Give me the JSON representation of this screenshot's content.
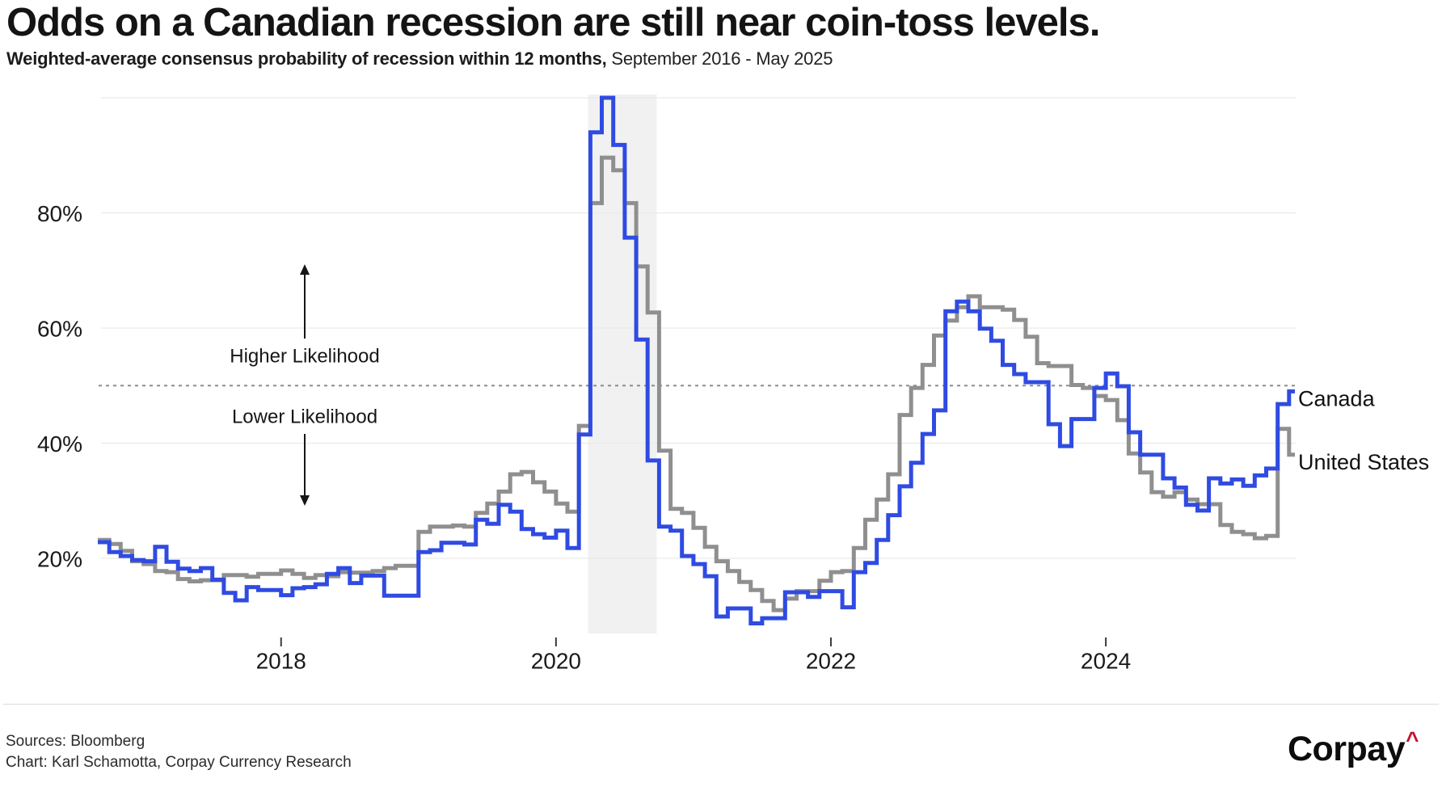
{
  "header": {
    "title": "Odds on a Canadian recession are still near coin-toss levels.",
    "subtitle_bold": "Weighted-average consensus probability of recession within 12 months,",
    "subtitle_light": " September 2016 - May 2025"
  },
  "annotations": {
    "higher_label": "Higher Likelihood",
    "lower_label": "Lower Likelihood"
  },
  "footer": {
    "sources": "Sources: Bloomberg",
    "credit": "Chart: Karl Schamotta, Corpay Currency Research",
    "logo_text": "Corpay",
    "logo_caret": "^"
  },
  "colors": {
    "canada_line": "#2f4be2",
    "us_line": "#8f8f8f",
    "recession_band": "#f1f1f1",
    "gridline": "#eaeaea",
    "reference_dotted": "#8c8c8c",
    "tick_text": "#1a1a1a",
    "annotation_text": "#161616",
    "logo_caret": "#c8102e"
  },
  "chart_data": {
    "type": "line",
    "step": true,
    "title": "Odds on a Canadian recession are still near coin-toss levels.",
    "subtitle": "Weighted-average consensus probability of recession within 12 months, September 2016 - May 2025",
    "x_start": "2016-09",
    "x_end": "2025-05",
    "months": 105,
    "ylim": [
      6,
      103
    ],
    "y_unit": "%",
    "grid_values": [
      20,
      40,
      60,
      80,
      100
    ],
    "y_ticks": [
      {
        "value": 20,
        "label": "20%"
      },
      {
        "value": 40,
        "label": "40%"
      },
      {
        "value": 60,
        "label": "60%"
      },
      {
        "value": 80,
        "label": "80%"
      }
    ],
    "x_ticks": [
      {
        "month_index": 16,
        "label": "2018"
      },
      {
        "month_index": 40,
        "label": "2020"
      },
      {
        "month_index": 64,
        "label": "2022"
      },
      {
        "month_index": 88,
        "label": "2024"
      }
    ],
    "reference_line": {
      "value": 50,
      "style": "dotted"
    },
    "shaded_band": {
      "name": "2020-recession-band",
      "from_month_index": 42.8,
      "to_month_index": 48.8
    },
    "legend_position": "end-of-line",
    "series": [
      {
        "name": "United States",
        "color_key": "us_line",
        "values": [
          23.2,
          22.5,
          21.3,
          19.5,
          19,
          17.8,
          17.6,
          16.4,
          16,
          16.2,
          16.2,
          17.1,
          17.1,
          16.8,
          17.3,
          17.3,
          17.9,
          17.3,
          16.6,
          17.1,
          16.9,
          17.6,
          17.5,
          17.5,
          17.8,
          18.3,
          18.7,
          18.7,
          24.6,
          25.5,
          25.5,
          25.7,
          25.5,
          27.9,
          29.5,
          31.6,
          34.6,
          35,
          33.2,
          31.6,
          29.5,
          28.1,
          43,
          81.7,
          89.6,
          87.4,
          81.7,
          70.7,
          62.7,
          38.7,
          28.6,
          27.9,
          25.3,
          22,
          19.5,
          17.8,
          15.9,
          14.5,
          12.6,
          11,
          13,
          14.3,
          14.3,
          16.1,
          17.6,
          17.8,
          21.8,
          26.7,
          30.2,
          34.6,
          44.9,
          49.6,
          53.6,
          58.7,
          61.3,
          63.6,
          65.5,
          63.6,
          63.6,
          63.2,
          61.4,
          58.5,
          53.9,
          53.4,
          53.4,
          50.1,
          49.6,
          48.2,
          47.5,
          44,
          38.2,
          34.9,
          31.5,
          30.7,
          31.5,
          30.2,
          29.4,
          29.4,
          25.8,
          24.6,
          24.2,
          23.5,
          23.9,
          42.5,
          38
        ]
      },
      {
        "name": "Canada",
        "color_key": "canada_line",
        "values": [
          22.8,
          21.1,
          20.4,
          19.7,
          19.5,
          22,
          19.4,
          18.2,
          17.8,
          18.3,
          16.3,
          14,
          12.7,
          15,
          14.5,
          14.5,
          13.6,
          14.8,
          15,
          15.5,
          17.3,
          18.3,
          15.7,
          17,
          17,
          13.5,
          13.5,
          13.5,
          21.1,
          21.4,
          22.7,
          22.7,
          22.4,
          26.7,
          26,
          29.3,
          28.1,
          25.1,
          24.2,
          23.6,
          24.8,
          21.8,
          41.5,
          94,
          100,
          91.8,
          75.7,
          58,
          37,
          25.5,
          24.8,
          20.4,
          19,
          16.9,
          9.9,
          11.3,
          11.3,
          8.7,
          9.6,
          9.6,
          14.1,
          14.1,
          13.3,
          14.3,
          14.3,
          11.5,
          17.6,
          19.2,
          23.2,
          27.5,
          32.5,
          36.6,
          41.6,
          45.7,
          62.9,
          64.6,
          62.9,
          59.9,
          57.8,
          53.6,
          52,
          50.6,
          50.6,
          43.3,
          39.5,
          44.2,
          44.2,
          49.6,
          52.1,
          49.9,
          41.9,
          38,
          38,
          33.9,
          32.3,
          29.3,
          28.3,
          33.9,
          33,
          33.7,
          32.6,
          34.4,
          35.6,
          46.8,
          49
        ]
      }
    ]
  }
}
